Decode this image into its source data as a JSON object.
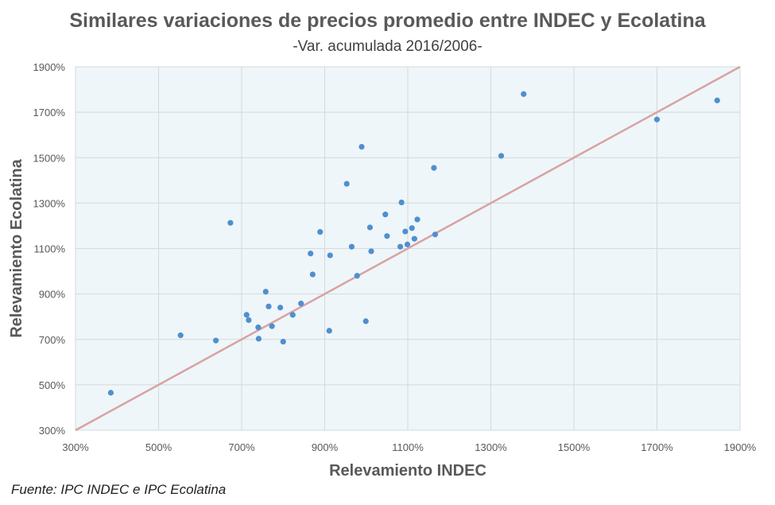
{
  "chart_data": {
    "type": "scatter",
    "title": "Similares variaciones de precios promedio entre INDEC y Ecolatina",
    "subtitle": "-Var. acumulada 2016/2006-",
    "xlabel": "Relevamiento INDEC",
    "ylabel": "Relevamiento Ecolatina",
    "xlim": [
      300,
      1900
    ],
    "ylim": [
      300,
      1900
    ],
    "x_ticks": [
      "300%",
      "500%",
      "700%",
      "900%",
      "1100%",
      "1300%",
      "1500%",
      "1700%",
      "1900%"
    ],
    "y_ticks": [
      "300%",
      "500%",
      "700%",
      "900%",
      "1100%",
      "1300%",
      "1500%",
      "1700%",
      "1900%"
    ],
    "grid": true,
    "reference_line": {
      "x": [
        300,
        1900
      ],
      "y": [
        300,
        1900
      ],
      "color": "#d9a2a3"
    },
    "point_color": "#4f8fcf",
    "plot_bg": "#eef6f9",
    "points": [
      [
        385,
        465
      ],
      [
        553,
        718
      ],
      [
        638,
        695
      ],
      [
        673,
        1213
      ],
      [
        712,
        808
      ],
      [
        717,
        785
      ],
      [
        740,
        753
      ],
      [
        741,
        703
      ],
      [
        758,
        910
      ],
      [
        765,
        845
      ],
      [
        773,
        758
      ],
      [
        793,
        840
      ],
      [
        800,
        690
      ],
      [
        823,
        808
      ],
      [
        843,
        858
      ],
      [
        866,
        1078
      ],
      [
        871,
        986
      ],
      [
        889,
        1173
      ],
      [
        911,
        738
      ],
      [
        913,
        1070
      ],
      [
        953,
        1385
      ],
      [
        965,
        1108
      ],
      [
        978,
        980
      ],
      [
        989,
        1548
      ],
      [
        999,
        780
      ],
      [
        1009,
        1193
      ],
      [
        1012,
        1088
      ],
      [
        1046,
        1250
      ],
      [
        1050,
        1155
      ],
      [
        1082,
        1108
      ],
      [
        1085,
        1303
      ],
      [
        1094,
        1175
      ],
      [
        1099,
        1118
      ],
      [
        1110,
        1190
      ],
      [
        1116,
        1143
      ],
      [
        1123,
        1228
      ],
      [
        1163,
        1455
      ],
      [
        1166,
        1162
      ],
      [
        1325,
        1508
      ],
      [
        1379,
        1780
      ],
      [
        1700,
        1668
      ],
      [
        1845,
        1752
      ]
    ]
  },
  "source": "Fuente: IPC INDEC e IPC Ecolatina"
}
